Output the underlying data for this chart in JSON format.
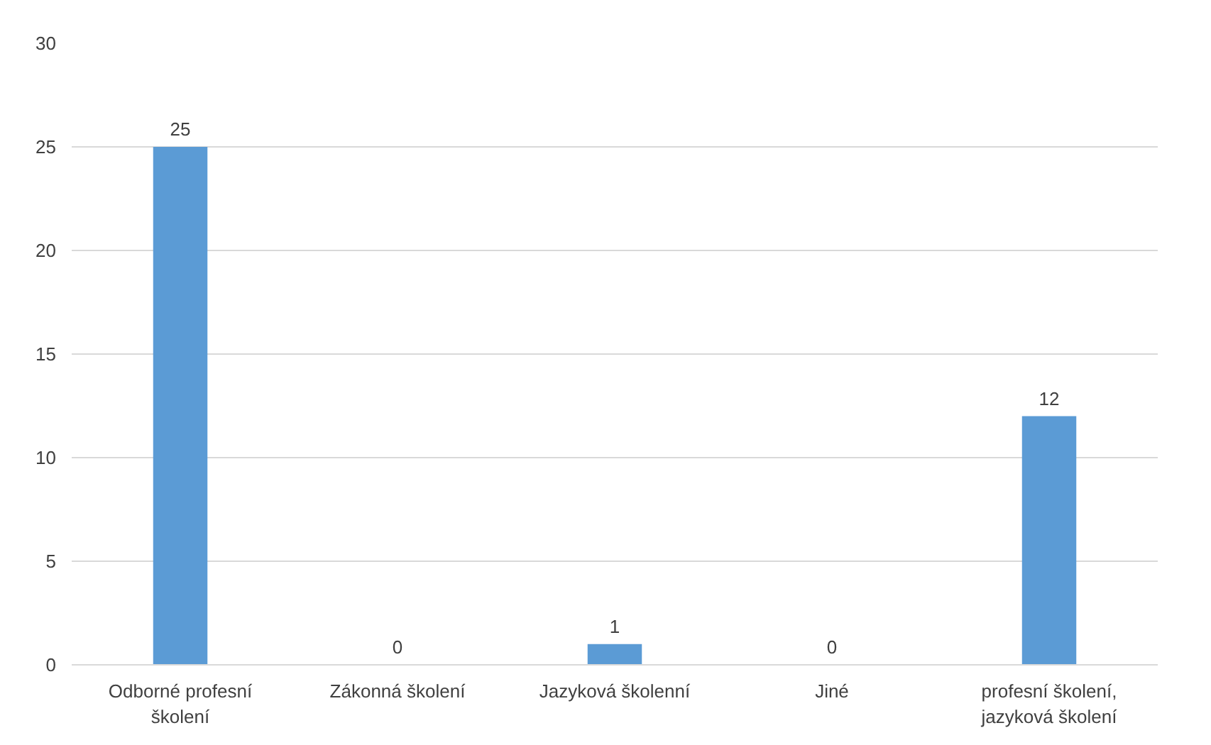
{
  "chart_data": {
    "type": "bar",
    "categories": [
      "Odborné profesní\nškolení",
      "Zákonná školení",
      "Jazyková školenní",
      "Jiné",
      "profesní školení,\njazyková školení"
    ],
    "values": [
      25,
      0,
      1,
      0,
      12
    ],
    "color": "#5b9bd5",
    "ylim": [
      0,
      30
    ],
    "yticks": [
      0,
      5,
      10,
      15,
      20,
      25,
      30
    ],
    "grid": "y",
    "data_labels": true
  }
}
